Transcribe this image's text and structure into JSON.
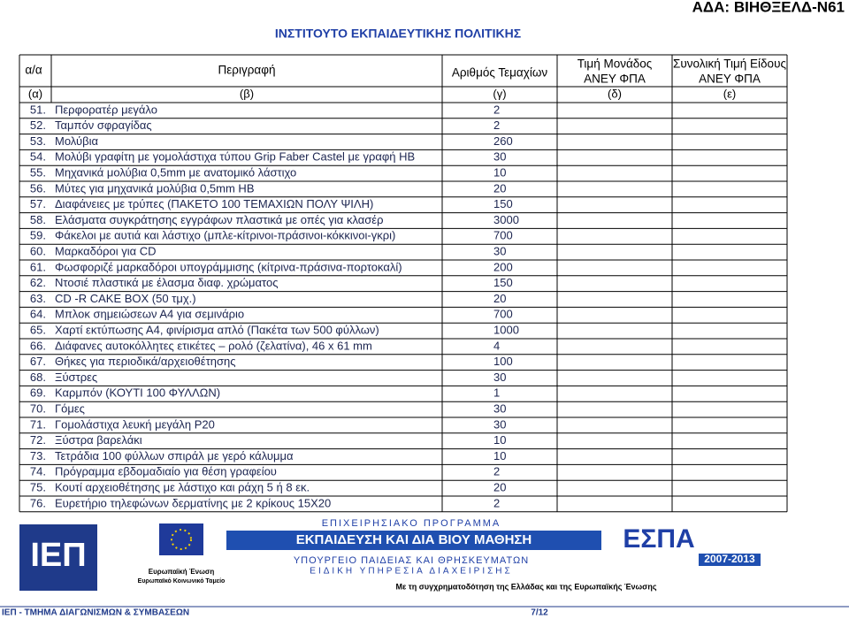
{
  "header": {
    "ada": "ΑΔΑ: ΒΙΗΘΞΕΛΔ-Ν61",
    "title": "ΙΝΣΤΙΤΟΥΤΟ ΕΚΠΑΙΔΕΥΤΙΚΗΣ ΠΟΛΙΤΙΚΗΣ"
  },
  "table": {
    "columns": [
      [
        "α/α"
      ],
      [
        "Περιγραφή"
      ],
      [
        "Αριθμός Τεμαχίων"
      ],
      [
        "Τιμή Μονάδος",
        "ΑΝΕΥ ΦΠΑ"
      ],
      [
        "Συνολική Τιμή Είδους",
        "ΑΝΕΥ ΦΠΑ"
      ]
    ],
    "codes": [
      "(α)",
      "(β)",
      "(γ)",
      "(δ)",
      "(ε)"
    ],
    "rows": [
      [
        "51.",
        "Περφορατέρ μεγάλο",
        2
      ],
      [
        "52.",
        "Ταμπόν σφραγίδας",
        2
      ],
      [
        "53.",
        "Μολύβια",
        260
      ],
      [
        "54.",
        "Μολύβι γραφίτη με γομολάστιχα τύπου Grip Faber Castel με γραφή HB",
        30
      ],
      [
        "55.",
        "Μηχανικά μολύβια 0,5mm με ανατομικό λάστιχο",
        10
      ],
      [
        "56.",
        "Μύτες για μηχανικά μολύβια 0,5mm HB",
        20
      ],
      [
        "57.",
        "Διαφάνειες με τρύπες (ΠΑΚΕΤΟ 100 ΤΕΜΑΧΙΩΝ ΠΟΛΥ ΨΙΛΗ)",
        150
      ],
      [
        "58.",
        "Ελάσματα συγκράτησης εγγράφων πλαστικά με οπές για κλασέρ",
        3000
      ],
      [
        "59.",
        "Φάκελοι με αυτιά και λάστιχο (μπλε-κίτρινοι-πράσινοι-κόκκινοι-γκρι)",
        700
      ],
      [
        "60.",
        "Μαρκαδόροι για CD",
        30
      ],
      [
        "61.",
        "Φωσφοριζέ μαρκαδόροι υπογράμμισης (κίτρινα-πράσινα-πορτοκαλί)",
        200
      ],
      [
        "62.",
        "Ντοσιέ πλαστικά με έλασμα διαφ. χρώματος",
        150
      ],
      [
        "63.",
        "CD -R CAKE BOX (50 τμχ.)",
        20
      ],
      [
        "64.",
        "Μπλοκ σημειώσεων Α4 για σεμινάριο",
        700
      ],
      [
        "65.",
        "Χαρτί εκτύπωσης Α4, φινίρισμα απλό (Πακέτα των 500 φύλλων)",
        1000
      ],
      [
        "66.",
        "Διάφανες αυτοκόλλητες ετικέτες – ρολό (ζελατίνα), 46 x 61 mm",
        4
      ],
      [
        "67.",
        "Θήκες για περιοδικά/αρχειοθέτησης",
        100
      ],
      [
        "68.",
        "Ξύστρες",
        30
      ],
      [
        "69.",
        "Καρμπόν (ΚΟΥΤΙ 100 ΦΥΛΛΩΝ)",
        1
      ],
      [
        "70.",
        "Γόμες",
        30
      ],
      [
        "71.",
        "Γομολάστιχα λευκή μεγάλη P20",
        30
      ],
      [
        "72.",
        "Ξύστρα βαρελάκι",
        10
      ],
      [
        "73.",
        "Τετράδια 100 φύλλων σπιράλ με γερό κάλυμμα",
        10
      ],
      [
        "74.",
        "Πρόγραμμα εβδομαδιαίο για θέση γραφείου",
        2
      ],
      [
        "75.",
        "Κουτί αρχειοθέτησης με λάστιχο και ράχη 5 ή 8 εκ.",
        20
      ],
      [
        "76.",
        "Ευρετήριο τηλεφώνων δερματίνης με 2 κρίκους 15Χ20",
        2
      ]
    ]
  },
  "logos": {
    "iep": "ΙΕΠ",
    "eu": [
      "Ευρωπαϊκή Ένωση",
      "Ευρωπαϊκό Κοινωνικό Ταμείο"
    ],
    "program": [
      "ΕΠΙΧΕΙΡΗΣΙΑΚΟ ΠΡΟΓΡΑΜΜΑ",
      "ΕΚΠΑΙΔΕΥΣΗ ΚΑΙ ΔΙΑ ΒΙΟΥ ΜΑΘΗΣΗ",
      "ΥΠΟΥΡΓΕΙΟ ΠΑΙΔΕΙΑΣ ΚΑΙ ΘΡΗΣΚΕΥΜΑΤΩΝ",
      "ΕΙΔΙΚΗ ΥΠΗΡΕΣΙΑ ΔΙΑΧΕΙΡΙΣΗΣ"
    ],
    "espa": "ΕΣΠΑ",
    "espa_years": "2007-2013",
    "cofunding": "Με τη συγχρηματοδότηση της Ελλάδας και της Ευρωπαϊκής Ένωσης"
  },
  "footer": {
    "left": "ΙΕΠ - ΤΜΗΜΑ ΔΙΑΓΩΝΙΣΜΩΝ & ΣΥΜΒΑΣΕΩΝ",
    "page": "7/12"
  }
}
